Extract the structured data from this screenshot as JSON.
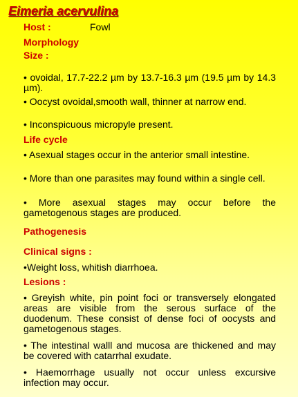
{
  "title": {
    "genus": "Eimeria",
    "species": "acervulina"
  },
  "host": {
    "label": "Host :",
    "value": "Fowl"
  },
  "morphology": {
    "heading": "Morphology",
    "size_label": "Size :",
    "points": [
      "• ovoidal, 17.7-22.2 µm by 13.7-16.3 µm (19.5 µm by 14.3 µm).",
      "• Oocyst ovoidal,smooth wall, thinner at narrow end.",
      "• Inconspicuous micropyle present."
    ]
  },
  "life_cycle": {
    "heading": "Life cycle",
    "points": [
      "• Asexual stages occur in the anterior small intestine.",
      "• More than one parasites may found within a single cell.",
      "• More asexual stages may occur before the gametogenous stages are produced."
    ]
  },
  "pathogenesis": {
    "heading": "Pathogenesis"
  },
  "clinical_signs": {
    "heading": "Clinical signs :",
    "points": [
      "•Weight loss, whitish diarrhoea."
    ]
  },
  "lesions": {
    "heading": "Lesions :",
    "points": [
      "• Greyish white, pin point foci or transversely elongated areas are visible from the serous surface of the duodenum. These consist of dense foci of oocysts and gametogenous stages.",
      "• The intestinal walll and mucosa are thickened and may be covered with catarrhal exudate.",
      "• Haemorrhage usually not occur unless excursive infection may occur."
    ]
  },
  "colors": {
    "heading": "#cc0000",
    "background_top": "#ffff00",
    "background_bottom": "#ffffcc",
    "text": "#000000"
  }
}
